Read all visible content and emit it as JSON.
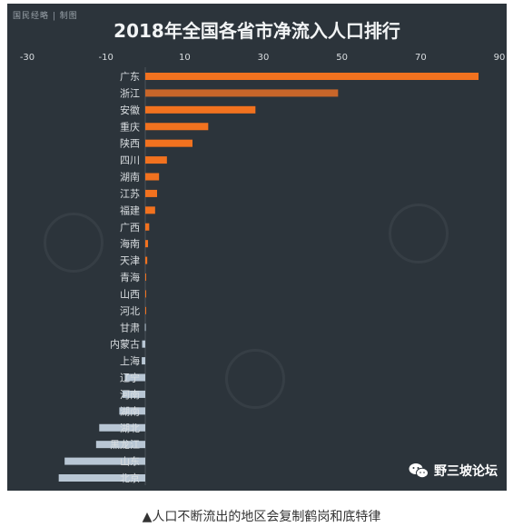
{
  "source_tag": "国民经略 | 制图",
  "badge_text": "野三坡论坛",
  "caption": "▲人口不断流出的地区会复制鹤岗和底特律",
  "colors": {
    "background": "#2c343b",
    "positive_top": "#f2721f",
    "positive_second": "#c8662a",
    "negative": "#b8c6d4",
    "text": "#d9dde0"
  },
  "chart_data": {
    "type": "bar",
    "orientation": "horizontal",
    "title": "2018年全国各省市净流入人口排行",
    "xlim": [
      -30,
      90
    ],
    "xticks": [
      -30,
      -10,
      10,
      30,
      50,
      70,
      90
    ],
    "categories": [
      "广东",
      "浙江",
      "安徽",
      "重庆",
      "陕西",
      "四川",
      "湖南",
      "江苏",
      "福建",
      "广西",
      "海南",
      "天津",
      "青海",
      "山西",
      "河北",
      "甘肃",
      "内蒙古",
      "上海",
      "辽宁",
      "河南",
      "湖南",
      "湖北",
      "黑龙江",
      "山东",
      "北京"
    ],
    "values": [
      84.7,
      49.0,
      28.0,
      16.0,
      12.0,
      5.5,
      3.5,
      3.0,
      2.5,
      1.0,
      0.7,
      0.5,
      0.1,
      0.05,
      0.05,
      -0.1,
      -0.8,
      -0.9,
      -5.2,
      -5.8,
      -6.6,
      -11.7,
      -12.5,
      -20.5,
      -22.0
    ],
    "grid": false,
    "legend": "none"
  }
}
